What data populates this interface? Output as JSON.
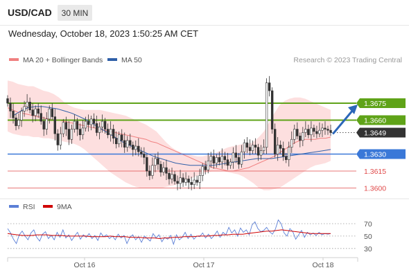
{
  "header": {
    "symbol": "USD/CAD",
    "timeframe": "30 MIN",
    "datetime": "Wednesday, October 18, 2023 1:50:25 AM CET"
  },
  "legend": {
    "bollinger": {
      "label": "MA 20 + Bollinger Bands",
      "color": "#f08080"
    },
    "ma50": {
      "label": "MA 50",
      "color": "#2f5fa8"
    },
    "credit": "Research © 2023 Trading Central"
  },
  "rsi_legend": {
    "rsi": {
      "label": "RSI",
      "color": "#5b7fd6"
    },
    "ma9": {
      "label": "9MA",
      "color": "#d00000"
    }
  },
  "colors": {
    "resistance": "#5fa318",
    "support": "#3a78d8",
    "minor": "#e04a4a",
    "candle": "#333333",
    "band": "#fdd9d9"
  },
  "chart_data": {
    "type": "candlestick",
    "levels": [
      {
        "value": 1.3675,
        "label": "1.3675",
        "kind": "resistance"
      },
      {
        "value": 1.366,
        "label": "1.3660",
        "kind": "resistance"
      },
      {
        "value": 1.3649,
        "label": "1.3649",
        "kind": "current"
      },
      {
        "value": 1.363,
        "label": "1.3630",
        "kind": "support"
      },
      {
        "value": 1.3615,
        "label": "1.3615",
        "kind": "minor"
      },
      {
        "value": 1.36,
        "label": "1.3600",
        "kind": "minor"
      }
    ],
    "ylim": [
      1.3596,
      1.3705
    ],
    "x_labels": [
      "Oct 16",
      "Oct 17",
      "Oct 18"
    ],
    "close": [
      1.3675,
      1.3668,
      1.3662,
      1.3655,
      1.366,
      1.3668,
      1.3672,
      1.3676,
      1.3669,
      1.3664,
      1.367,
      1.3666,
      1.3659,
      1.3652,
      1.3661,
      1.367,
      1.3663,
      1.3648,
      1.3638,
      1.3648,
      1.3658,
      1.3652,
      1.3643,
      1.3652,
      1.3659,
      1.3652,
      1.3647,
      1.3653,
      1.3659,
      1.3656,
      1.3661,
      1.3657,
      1.3649,
      1.3654,
      1.3659,
      1.3652,
      1.3647,
      1.3652,
      1.3644,
      1.3639,
      1.3647,
      1.3642,
      1.3636,
      1.3642,
      1.3638,
      1.3634,
      1.3637,
      1.3632,
      1.363,
      1.3627,
      1.3615,
      1.3611,
      1.362,
      1.3626,
      1.3621,
      1.3614,
      1.3618,
      1.3613,
      1.3608,
      1.3612,
      1.3606,
      1.3604,
      1.3609,
      1.3605,
      1.3608,
      1.3605,
      1.3603,
      1.3607,
      1.3605,
      1.3611,
      1.3619,
      1.3616,
      1.3624,
      1.3628,
      1.3622,
      1.3627,
      1.3623,
      1.3628,
      1.3625,
      1.362,
      1.3623,
      1.3631,
      1.3627,
      1.3621,
      1.3632,
      1.364,
      1.3636,
      1.3633,
      1.3638,
      1.3636,
      1.3629,
      1.3633,
      1.3636,
      1.3693,
      1.3686,
      1.3652,
      1.363,
      1.3638,
      1.3635,
      1.3628,
      1.3625,
      1.3636,
      1.3643,
      1.3652,
      1.3646,
      1.3642,
      1.3649,
      1.3652,
      1.3647,
      1.3653,
      1.365,
      1.3648,
      1.3651,
      1.3653,
      1.3652,
      1.3651,
      1.3649
    ],
    "bollinger": {
      "middle": [
        1.3671,
        1.3669,
        1.3667,
        1.3666,
        1.3665,
        1.3664,
        1.3663,
        1.3662,
        1.3661,
        1.366,
        1.366,
        1.3659,
        1.3658,
        1.3657,
        1.3656,
        1.3655,
        1.3654,
        1.3653,
        1.3652,
        1.3651,
        1.365,
        1.3649,
        1.3648,
        1.3647,
        1.3646,
        1.3645,
        1.3644,
        1.3643,
        1.3641,
        1.364,
        1.3638,
        1.3636,
        1.3634,
        1.3632,
        1.363,
        1.3628,
        1.3626,
        1.3624,
        1.3622,
        1.362,
        1.3618,
        1.3617,
        1.3616,
        1.3615,
        1.3615,
        1.3616,
        1.3617,
        1.3618,
        1.362,
        1.3622,
        1.3624,
        1.3626,
        1.3628,
        1.3631,
        1.3634,
        1.3637,
        1.364,
        1.3642,
        1.3643,
        1.3643,
        1.3643,
        1.3644,
        1.3644,
        1.3645
      ],
      "upper": [
        1.3695,
        1.3694,
        1.3692,
        1.3691,
        1.369,
        1.369,
        1.3688,
        1.3686,
        1.3685,
        1.3683,
        1.368,
        1.3676,
        1.3673,
        1.3671,
        1.367,
        1.3669,
        1.3669,
        1.3669,
        1.3669,
        1.3668,
        1.3667,
        1.3666,
        1.3665,
        1.3664,
        1.3662,
        1.366,
        1.3658,
        1.3656,
        1.3653,
        1.365,
        1.3645,
        1.364,
        1.3636,
        1.3633,
        1.3631,
        1.363,
        1.3629,
        1.3628,
        1.3628,
        1.3629,
        1.363,
        1.3632,
        1.3634,
        1.3636,
        1.3637,
        1.3638,
        1.3639,
        1.3639,
        1.3641,
        1.3645,
        1.365,
        1.3658,
        1.3666,
        1.3673,
        1.3677,
        1.3679,
        1.368,
        1.368,
        1.3679,
        1.3677,
        1.3675,
        1.3673,
        1.3671,
        1.3669
      ],
      "lower": [
        1.365,
        1.3648,
        1.3647,
        1.3646,
        1.3646,
        1.3645,
        1.3645,
        1.3644,
        1.3644,
        1.3643,
        1.3642,
        1.3641,
        1.364,
        1.3639,
        1.3637,
        1.3634,
        1.363,
        1.3626,
        1.3622,
        1.3618,
        1.3614,
        1.3611,
        1.3608,
        1.3605,
        1.3603,
        1.3601,
        1.36,
        1.36,
        1.36,
        1.36,
        1.36,
        1.3601,
        1.3602,
        1.3603,
        1.3605,
        1.3607,
        1.3609,
        1.3611,
        1.3613,
        1.3614,
        1.3615,
        1.3615,
        1.3615,
        1.3614,
        1.3613,
        1.3612,
        1.361,
        1.3607,
        1.3604,
        1.36,
        1.3598,
        1.3598,
        1.3599,
        1.36,
        1.3603,
        1.3606,
        1.3609,
        1.3612,
        1.3615,
        1.3618,
        1.362,
        1.3621,
        1.3622,
        1.3624
      ]
    },
    "ma50": [
      1.3664,
      1.3668,
      1.3671,
      1.3672,
      1.3672,
      1.3671,
      1.367,
      1.3668,
      1.3666,
      1.3663,
      1.366,
      1.3656,
      1.3652,
      1.3648,
      1.3644,
      1.364,
      1.3637,
      1.3634,
      1.3631,
      1.3628,
      1.3626,
      1.3624,
      1.3622,
      1.3621,
      1.362,
      1.362,
      1.362,
      1.362,
      1.3621,
      1.3622,
      1.3623,
      1.3624,
      1.3625,
      1.3626,
      1.3626,
      1.3626,
      1.3627,
      1.3628,
      1.3629,
      1.363,
      1.3631,
      1.3632,
      1.3633,
      1.3634
    ],
    "ma50_start_index": 2,
    "rsi": {
      "levels": [
        70,
        50,
        30
      ],
      "ylim": [
        22,
        80
      ],
      "rsi": [
        62,
        55,
        45,
        38,
        52,
        58,
        50,
        44,
        55,
        60,
        48,
        42,
        53,
        57,
        46,
        51,
        44,
        56,
        48,
        60,
        47,
        52,
        43,
        50,
        56,
        45,
        52,
        48,
        54,
        46,
        51,
        43,
        55,
        49,
        52,
        46,
        50,
        44,
        53,
        47,
        51,
        38,
        48,
        52,
        44,
        49,
        40,
        50,
        46,
        42,
        54,
        47,
        52,
        41,
        48,
        45,
        51,
        37,
        52,
        44,
        48,
        56,
        46,
        53,
        45,
        50,
        49,
        55,
        47,
        53,
        46,
        51,
        58,
        48,
        56,
        52,
        64,
        55,
        60,
        50,
        63,
        56,
        60,
        52,
        68,
        73,
        62,
        57,
        59,
        64,
        57,
        53,
        61,
        76,
        70,
        55,
        50,
        62,
        57,
        45,
        52,
        59,
        48,
        56,
        52,
        55,
        51,
        56,
        52,
        54,
        53,
        54
      ],
      "ma9": [
        54,
        53,
        52,
        51,
        51,
        51,
        52,
        52,
        52,
        51,
        51,
        51,
        50,
        50,
        50,
        50,
        50,
        49,
        49,
        49,
        49,
        50,
        49,
        49,
        49,
        48,
        48,
        48,
        47,
        47,
        47,
        46,
        47,
        47,
        48,
        48,
        49,
        49,
        49,
        50,
        50,
        50,
        51,
        51,
        52,
        52,
        53,
        53,
        53,
        54,
        55,
        56,
        57,
        58,
        58,
        59,
        60,
        59,
        58,
        57,
        56,
        55,
        54,
        54,
        54,
        54,
        54
      ]
    }
  }
}
